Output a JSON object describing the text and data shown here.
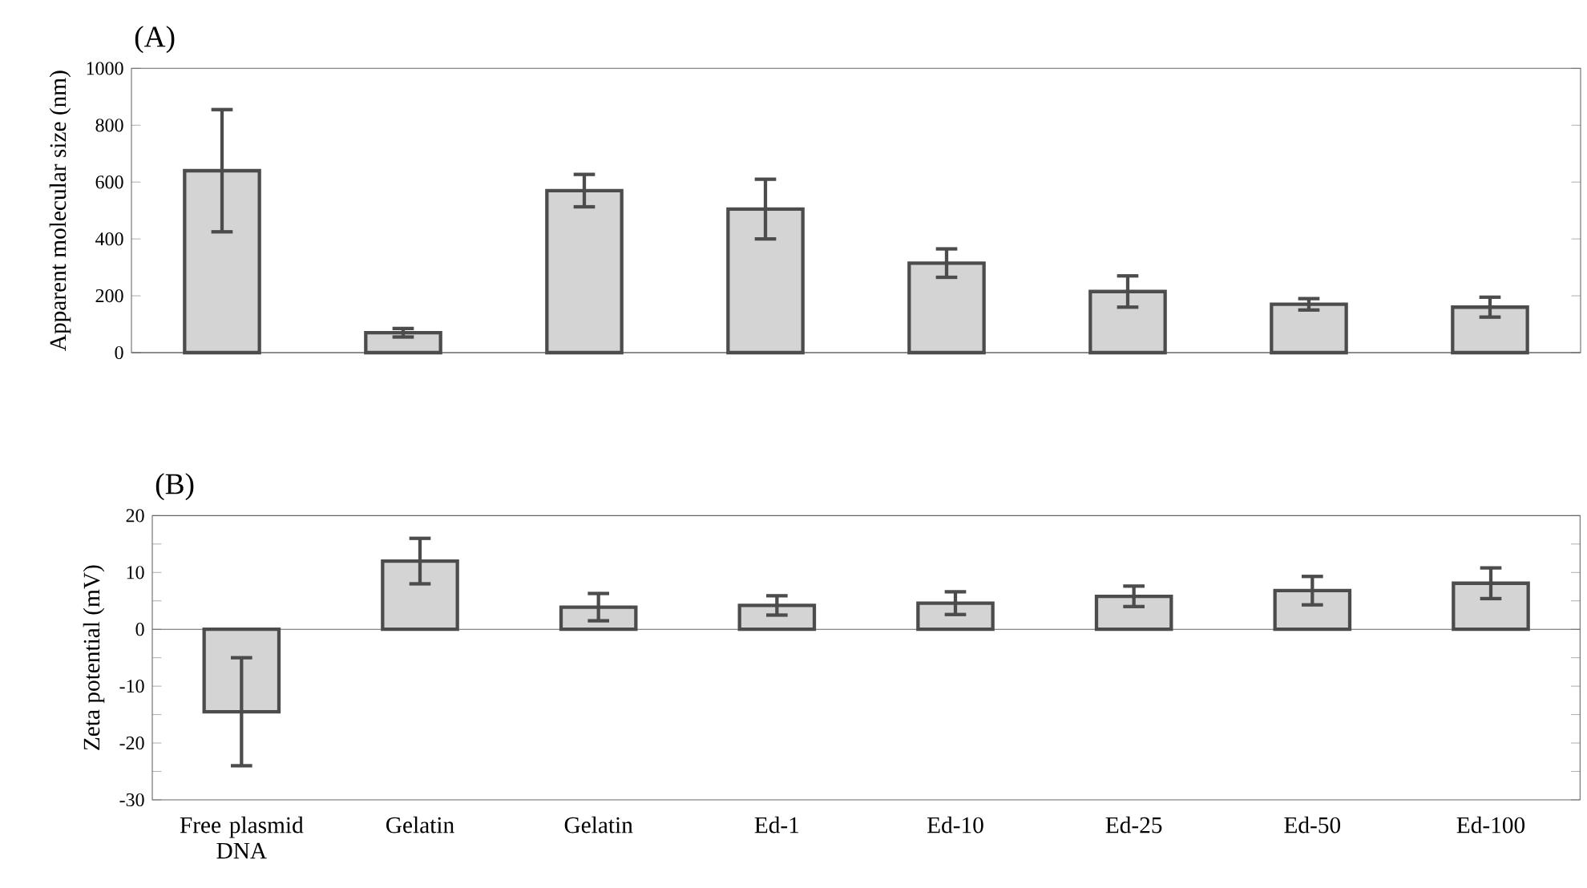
{
  "chart_data": [
    {
      "type": "bar",
      "title": "(A)",
      "ylabel": "Apparent molecular size (nm)",
      "categories": [
        null,
        null,
        null,
        null,
        null,
        null,
        null,
        null
      ],
      "values": [
        640,
        70,
        570,
        505,
        315,
        215,
        170,
        160
      ],
      "errors": [
        215,
        15,
        57,
        105,
        50,
        55,
        20,
        35
      ],
      "color": "#d4d4d4",
      "ylim": [
        0,
        1000
      ],
      "yticks": [
        0,
        200,
        400,
        600,
        800,
        1000
      ]
    },
    {
      "type": "bar",
      "title": "(B)",
      "ylabel": "Zeta potential (mV)",
      "categories": [
        "Free plasmid DNA",
        "Gelatin",
        "Gelatin",
        "Ed-1",
        "Ed-10",
        "Ed-25",
        "Ed-50",
        "Ed-100"
      ],
      "values": [
        -14.5,
        12,
        3.9,
        4.2,
        4.6,
        5.8,
        6.8,
        8.1
      ],
      "errors": [
        9.5,
        4,
        2.4,
        1.7,
        2,
        1.8,
        2.5,
        2.7
      ],
      "color": "#d4d4d4",
      "ylim": [
        -30,
        20
      ],
      "yticks": [
        -30,
        {
          "value": -25,
          "label": null
        },
        -20,
        {
          "value": -15,
          "label": null
        },
        -10,
        {
          "value": -5,
          "label": null
        },
        0,
        {
          "value": 5,
          "label": null
        },
        10,
        {
          "value": 15,
          "label": null
        },
        20
      ]
    }
  ]
}
